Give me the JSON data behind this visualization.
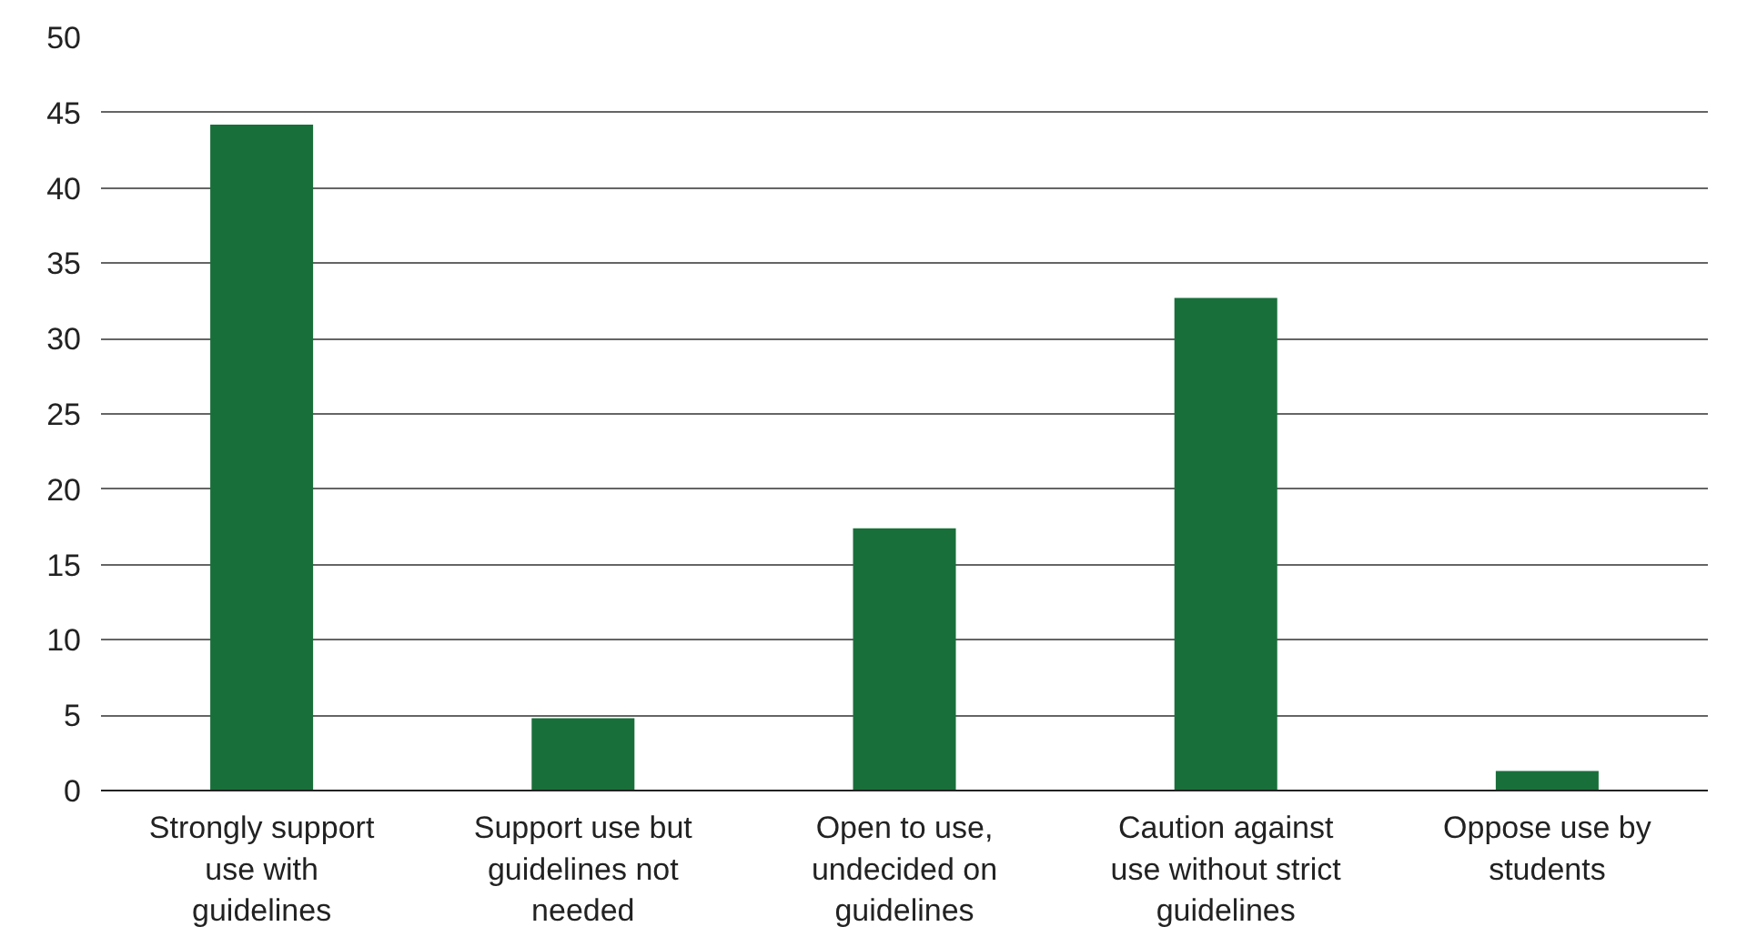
{
  "chart_data": {
    "type": "bar",
    "categories": [
      "Strongly support use with guidelines",
      "Support use but guidelines not needed",
      "Open to use, undecided on guidelines",
      "Caution against use without strict guidelines",
      "Oppose use by students"
    ],
    "values": [
      44.2,
      4.8,
      17.4,
      32.7,
      1.3
    ],
    "color": "#196f3a",
    "ylim": [
      0,
      50
    ],
    "yticks": [
      0,
      5,
      10,
      15,
      20,
      25,
      30,
      35,
      40,
      45,
      50
    ],
    "grid": "y"
  }
}
